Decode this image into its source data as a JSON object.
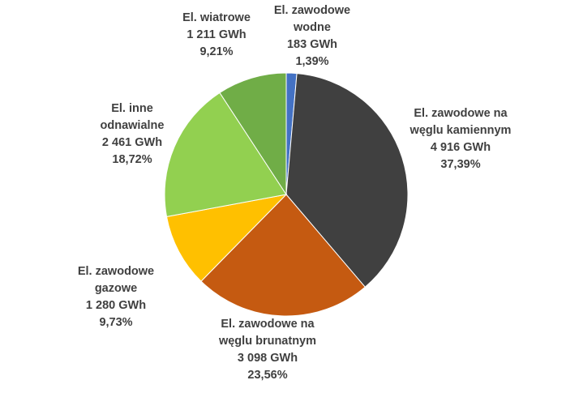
{
  "chart_data": {
    "type": "pie",
    "categories": [
      "El. zawodowe wodne",
      "El. zawodowe na węglu kamiennym",
      "El. zawodowe na węglu brunatnym",
      "El. zawodowe gazowe",
      "El. inne odnawialne",
      "El. wiatrowe"
    ],
    "values": [
      183,
      4916,
      3098,
      1280,
      2461,
      1211
    ],
    "value_labels": [
      "183 GWh",
      "4 916 GWh",
      "3 098 GWh",
      "1 280 GWh",
      "2 461 GWh",
      "1 211 GWh"
    ],
    "percents": [
      1.39,
      37.39,
      23.56,
      9.73,
      18.72,
      9.21
    ],
    "percent_labels": [
      "1,39%",
      "37,39%",
      "23,56%",
      "9,73%",
      "18,72%",
      "9,21%"
    ],
    "colors": [
      "#4472c4",
      "#404040",
      "#c55a11",
      "#ffc000",
      "#92d050",
      "#70ad47"
    ]
  }
}
